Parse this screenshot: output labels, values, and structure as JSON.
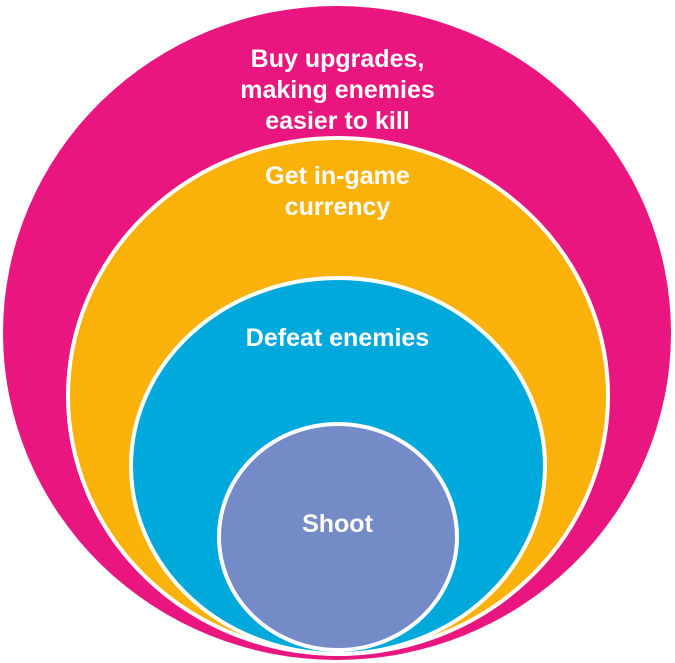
{
  "diagram": {
    "levels": [
      {
        "label": "Buy upgrades,\nmaking enemies\neasier to kill",
        "color": "#e8167e"
      },
      {
        "label": "Get in-game\ncurrency",
        "color": "#fab20b"
      },
      {
        "label": "Defeat enemies",
        "color": "#00a9dc"
      },
      {
        "label": "Shoot",
        "color": "#758bc7"
      }
    ],
    "stroke_color": "#ffffff"
  }
}
